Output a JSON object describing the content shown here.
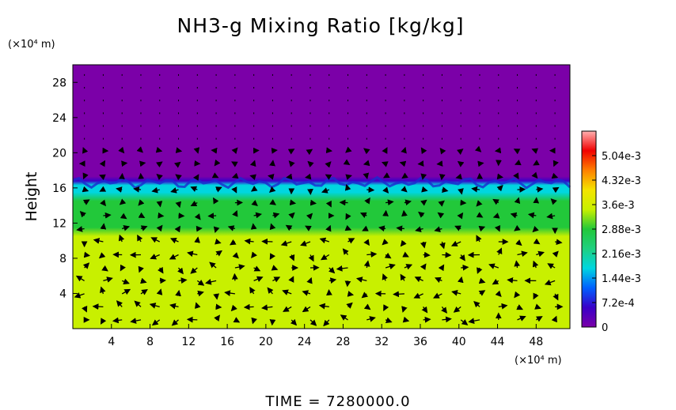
{
  "chart_data": {
    "type": "heatmap",
    "title": "NH3-g Mixing Ratio [kg/kg]",
    "ylabel": "Height",
    "y_unit": "(×10⁴ m)",
    "x_unit": "(×10⁴ m)",
    "xlim": [
      0,
      51.5
    ],
    "ylim": [
      0,
      30
    ],
    "xticks": [
      4,
      8,
      12,
      16,
      20,
      24,
      28,
      32,
      36,
      40,
      44,
      48
    ],
    "yticks": [
      4,
      8,
      12,
      16,
      20,
      24,
      28
    ],
    "colorbar": {
      "min": 0,
      "max": 0.00576,
      "tick_values": [
        0,
        0.00072,
        0.00144,
        0.00216,
        0.00288,
        0.0036,
        0.00432,
        0.00504
      ],
      "tick_labels": [
        "0",
        "7.2e-4",
        "1.44e-3",
        "2.16e-3",
        "2.88e-3",
        "3.6e-3",
        "4.32e-3",
        "5.04e-3"
      ]
    },
    "profile": [
      {
        "height": 0,
        "value": 0.0036
      },
      {
        "height": 10.5,
        "value": 0.0036
      },
      {
        "height": 11.5,
        "value": 0.003
      },
      {
        "height": 13.0,
        "value": 0.0028
      },
      {
        "height": 14.5,
        "value": 0.0026
      },
      {
        "height": 15.5,
        "value": 0.002
      },
      {
        "height": 16.3,
        "value": 0.0015
      },
      {
        "height": 16.8,
        "value": 0.0004
      },
      {
        "height": 17.3,
        "value": 0.0
      },
      {
        "height": 30,
        "value": 0.0
      }
    ],
    "wind_vectors": true,
    "grid": false,
    "colors": {
      "scale": [
        "#7b00a8",
        "#3a00c8",
        "#0060ff",
        "#00d6e0",
        "#1fd080",
        "#22c83a",
        "#c8f000",
        "#f4e400",
        "#ff8000",
        "#f00000",
        "#ffb0b0"
      ]
    }
  },
  "footer": {
    "time_label": "TIME  =  7280000.0"
  }
}
